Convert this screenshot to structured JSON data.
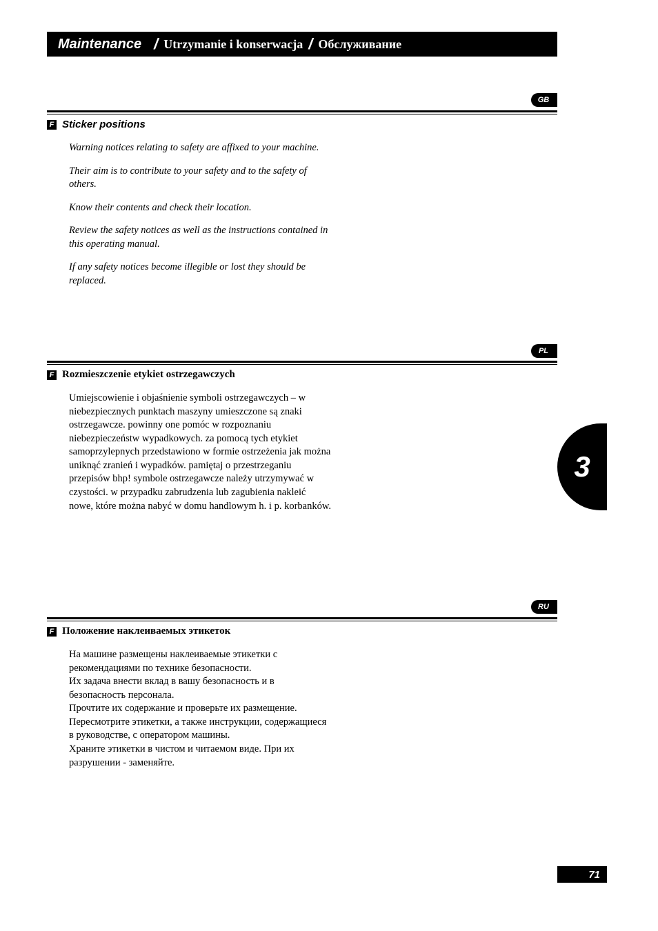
{
  "header": {
    "title_en": "Maintenance",
    "title_pl": "Utrzymanie i konserwacja",
    "title_ru": "Обслуживание",
    "slash": "/"
  },
  "lang_tabs": {
    "gb": "GB",
    "pl": "PL",
    "ru": "RU"
  },
  "chapter_number": "3",
  "page_number": "71",
  "f_marker": "F",
  "sections": {
    "en": {
      "heading": "Sticker positions",
      "paragraphs": [
        "Warning notices relating to safety are affixed to your machine.",
        "Their aim is to contribute to your safety and to the safety of others.",
        "Know their contents and check their location.",
        "Review the safety notices as well as the instructions contained in this operating manual.",
        "If any safety notices become illegible or lost they should be replaced."
      ]
    },
    "pl": {
      "heading": "Rozmieszczenie etykiet ostrzegawczych",
      "paragraphs": [
        "Umiejscowienie i objaśnienie symboli ostrzegawczych – w niebezpiecznych punktach maszyny umieszczone są znaki ostrzegawcze. powinny one pomóc w rozpoznaniu niebezpieczeństw wypadkowych. za pomocą tych etykiet samoprzylepnych przedstawiono w formie ostrzeżenia jak można uniknąć zranień i wypadków. pamiętaj o przestrzeganiu przepisów bhp! symbole ostrzegawcze należy utrzymywać w czystości. w przypadku zabrudzenia lub zagubienia nakleić nowe, które można nabyć w domu handlowym h. i p. korbanków."
      ]
    },
    "ru": {
      "heading": "Положение наклеиваемых этикеток",
      "paragraphs": [
        "На машине размещены наклеиваемые этикетки с рекомендациями по технике безопасности.",
        "Их задача внести вклад в вашу безопасность и в безопасность персонала.",
        "Прочтите их содержание и проверьте их размещение.",
        "Пересмотрите этикетки, а также инструкции, содержащиеся в руководстве, с оператором машины.",
        "Храните этикетки в чистом и читаемом виде. При их разрушении - заменяйте."
      ]
    }
  },
  "colors": {
    "black": "#000000",
    "white": "#ffffff"
  }
}
